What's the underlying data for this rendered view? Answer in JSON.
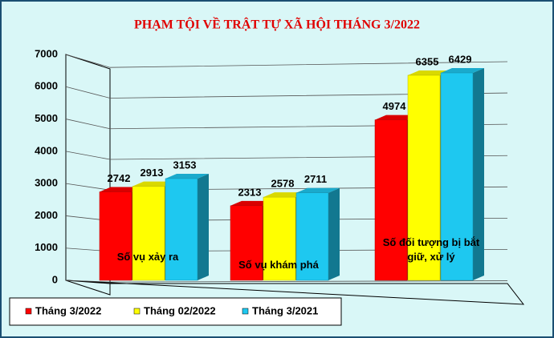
{
  "chart_data": {
    "type": "bar3d",
    "title": "PHẠM TỘI VỀ TRẬT TỰ XÃ HỘI THÁNG 3/2022",
    "categories": [
      "Số vụ xảy ra",
      "Số vụ khám phá",
      "Số đối tượng bị bắt giữ, xử lý"
    ],
    "series": [
      {
        "name": "Tháng 3/2022",
        "color": "#ff0000",
        "values": [
          2742,
          2313,
          4974
        ]
      },
      {
        "name": "Tháng 02/2022",
        "color": "#ffff00",
        "values": [
          2913,
          2578,
          6355
        ]
      },
      {
        "name": "Tháng 3/2021",
        "color": "#1ec8f0",
        "values": [
          3153,
          2711,
          6429
        ]
      }
    ],
    "ylim": [
      0,
      7000
    ],
    "yticks": [
      0,
      1000,
      2000,
      3000,
      4000,
      5000,
      6000,
      7000
    ],
    "grid": true
  }
}
